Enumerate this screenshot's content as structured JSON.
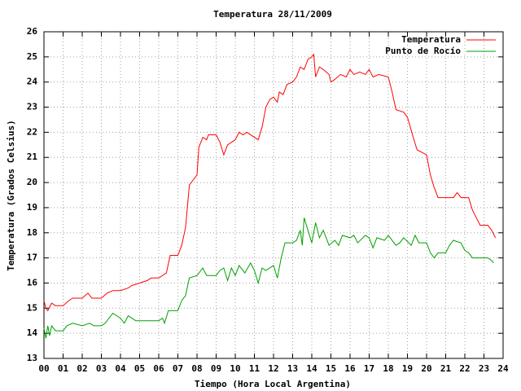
{
  "chart_data": {
    "type": "line",
    "title": "Temperatura 28/11/2009",
    "x_label": "Tiempo (Hora Local Argentina)",
    "y_label": "Temperatura (Grados Celsius)",
    "xlim": [
      0,
      24
    ],
    "ylim": [
      13,
      26
    ],
    "xticks": [
      {
        "value": 0,
        "label": "00"
      },
      {
        "value": 1,
        "label": "01"
      },
      {
        "value": 2,
        "label": "02"
      },
      {
        "value": 3,
        "label": "03"
      },
      {
        "value": 4,
        "label": "04"
      },
      {
        "value": 5,
        "label": "05"
      },
      {
        "value": 6,
        "label": "06"
      },
      {
        "value": 7,
        "label": "07"
      },
      {
        "value": 8,
        "label": "08"
      },
      {
        "value": 9,
        "label": "09"
      },
      10,
      11,
      12,
      13,
      14,
      15,
      16,
      17,
      18,
      19,
      20,
      21,
      22,
      23,
      24
    ],
    "yticks": [
      13,
      14,
      15,
      16,
      17,
      18,
      19,
      20,
      21,
      22,
      23,
      24,
      25,
      26
    ],
    "grid": true,
    "legend": "top-right",
    "series": [
      {
        "name": "Temperatura",
        "color": "#ff0000",
        "x": [
          0.0,
          0.1,
          0.2,
          0.4,
          0.6,
          1.0,
          1.3,
          1.5,
          2.0,
          2.3,
          2.5,
          3.0,
          3.3,
          3.6,
          4.0,
          4.4,
          4.6,
          5.0,
          5.4,
          5.6,
          6.0,
          6.4,
          6.6,
          7.0,
          7.2,
          7.4,
          7.6,
          7.8,
          8.0,
          8.1,
          8.3,
          8.5,
          8.6,
          9.0,
          9.2,
          9.4,
          9.6,
          10.0,
          10.2,
          10.4,
          10.6,
          11.0,
          11.2,
          11.4,
          11.6,
          11.8,
          12.0,
          12.2,
          12.3,
          12.5,
          12.7,
          13.0,
          13.2,
          13.4,
          13.6,
          13.8,
          14.0,
          14.1,
          14.2,
          14.4,
          14.6,
          14.9,
          15.0,
          15.2,
          15.5,
          15.8,
          16.0,
          16.2,
          16.5,
          16.8,
          17.0,
          17.2,
          17.5,
          18.0,
          18.2,
          18.4,
          18.8,
          19.0,
          19.3,
          19.5,
          20.0,
          20.2,
          20.4,
          20.6,
          21.0,
          21.4,
          21.6,
          21.8,
          22.2,
          22.4,
          22.6,
          22.8,
          23.2,
          23.4,
          23.6
        ],
        "values": [
          15.3,
          15.0,
          14.9,
          15.2,
          15.1,
          15.1,
          15.3,
          15.4,
          15.4,
          15.6,
          15.4,
          15.4,
          15.6,
          15.7,
          15.7,
          15.8,
          15.9,
          16.0,
          16.1,
          16.2,
          16.2,
          16.4,
          17.1,
          17.1,
          17.5,
          18.2,
          19.9,
          20.1,
          20.3,
          21.4,
          21.8,
          21.7,
          21.9,
          21.9,
          21.6,
          21.1,
          21.5,
          21.7,
          22.0,
          21.9,
          22.0,
          21.8,
          21.7,
          22.2,
          23.0,
          23.3,
          23.4,
          23.2,
          23.6,
          23.5,
          23.9,
          24.0,
          24.2,
          24.6,
          24.5,
          24.9,
          25.0,
          25.1,
          24.2,
          24.6,
          24.5,
          24.3,
          24.0,
          24.1,
          24.3,
          24.2,
          24.5,
          24.3,
          24.4,
          24.3,
          24.5,
          24.2,
          24.3,
          24.2,
          23.6,
          22.9,
          22.8,
          22.6,
          21.8,
          21.3,
          21.1,
          20.3,
          19.8,
          19.4,
          19.4,
          19.4,
          19.6,
          19.4,
          19.4,
          18.9,
          18.6,
          18.3,
          18.3,
          18.1,
          17.8
        ]
      },
      {
        "name": "Punto de Rocío",
        "color": "#00a000",
        "x": [
          0.0,
          0.1,
          0.2,
          0.3,
          0.4,
          0.6,
          1.0,
          1.2,
          1.5,
          2.0,
          2.4,
          2.6,
          3.0,
          3.2,
          3.6,
          4.0,
          4.2,
          4.4,
          4.8,
          5.0,
          5.5,
          6.0,
          6.2,
          6.3,
          6.5,
          7.0,
          7.2,
          7.4,
          7.6,
          8.0,
          8.3,
          8.5,
          9.0,
          9.2,
          9.4,
          9.6,
          9.8,
          10.0,
          10.2,
          10.5,
          10.8,
          11.0,
          11.2,
          11.4,
          11.6,
          12.0,
          12.2,
          12.4,
          12.6,
          13.0,
          13.2,
          13.4,
          13.5,
          13.6,
          13.8,
          14.0,
          14.2,
          14.4,
          14.6,
          14.9,
          15.2,
          15.4,
          15.6,
          16.0,
          16.2,
          16.4,
          16.8,
          17.0,
          17.2,
          17.4,
          17.8,
          18.0,
          18.4,
          18.6,
          18.8,
          19.2,
          19.4,
          19.6,
          20.0,
          20.2,
          20.4,
          20.6,
          21.0,
          21.2,
          21.4,
          21.8,
          22.0,
          22.2,
          22.4,
          22.8,
          23.2,
          23.4,
          23.5
        ],
        "values": [
          14.2,
          13.8,
          14.3,
          13.9,
          14.3,
          14.1,
          14.1,
          14.3,
          14.4,
          14.3,
          14.4,
          14.3,
          14.3,
          14.4,
          14.8,
          14.6,
          14.4,
          14.7,
          14.5,
          14.5,
          14.5,
          14.5,
          14.6,
          14.4,
          14.9,
          14.9,
          15.3,
          15.5,
          16.2,
          16.3,
          16.6,
          16.3,
          16.3,
          16.5,
          16.6,
          16.1,
          16.6,
          16.3,
          16.7,
          16.4,
          16.8,
          16.5,
          16.0,
          16.6,
          16.5,
          16.7,
          16.2,
          17.0,
          17.6,
          17.6,
          17.7,
          18.1,
          17.5,
          18.6,
          18.1,
          17.6,
          18.4,
          17.8,
          18.1,
          17.5,
          17.7,
          17.5,
          17.9,
          17.8,
          17.9,
          17.6,
          17.9,
          17.8,
          17.4,
          17.8,
          17.7,
          17.9,
          17.5,
          17.6,
          17.8,
          17.5,
          17.9,
          17.6,
          17.6,
          17.2,
          17.0,
          17.2,
          17.2,
          17.5,
          17.7,
          17.6,
          17.3,
          17.2,
          17.0,
          17.0,
          17.0,
          16.9,
          16.8
        ]
      }
    ]
  }
}
